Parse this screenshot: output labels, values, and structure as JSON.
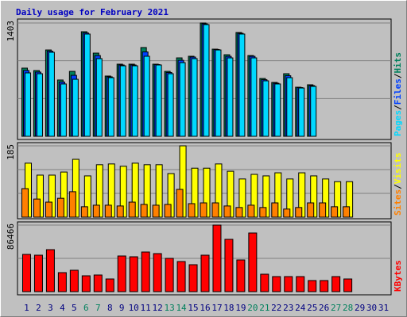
{
  "chart_data": [
    {
      "type": "bar",
      "title": "Daily usage for February 2021",
      "categories": [
        "1",
        "2",
        "3",
        "4",
        "5",
        "6",
        "7",
        "8",
        "9",
        "10",
        "11",
        "12",
        "13",
        "14",
        "15",
        "16",
        "17",
        "18",
        "19",
        "20",
        "21",
        "22",
        "23",
        "24",
        "25",
        "26",
        "27",
        "28",
        "29",
        "30",
        "31"
      ],
      "ylim": [
        0,
        1403
      ],
      "yticks": [
        1403
      ],
      "legend_separator": "/",
      "series": [
        {
          "name": "Hits",
          "color": "#00805c",
          "values": [
            844,
            814,
            1069,
            697,
            804,
            1295,
            1030,
            746,
            893,
            893,
            1099,
            893,
            804,
            971,
            991,
            1403,
            1079,
            1010,
            1285,
            1000,
            716,
            667,
            775,
            608,
            638,
            null,
            null,
            null,
            null,
            null,
            null
          ]
        },
        {
          "name": "Files",
          "color": "#0040ff",
          "values": [
            815,
            795,
            1055,
            672,
            755,
            1280,
            1000,
            736,
            883,
            883,
            1045,
            888,
            790,
            941,
            981,
            1393,
            1074,
            990,
            1275,
            990,
            701,
            657,
            750,
            603,
            628,
            null,
            null,
            null,
            null,
            null,
            null
          ]
        },
        {
          "name": "Pages",
          "color": "#00d8ff",
          "values": [
            785,
            775,
            1040,
            648,
            706,
            1266,
            962,
            726,
            873,
            873,
            991,
            883,
            775,
            912,
            962,
            1383,
            1069,
            971,
            1266,
            971,
            687,
            648,
            726,
            598,
            618,
            null,
            null,
            null,
            null,
            null,
            null
          ]
        }
      ]
    },
    {
      "type": "bar",
      "categories": [
        "1",
        "2",
        "3",
        "4",
        "5",
        "6",
        "7",
        "8",
        "9",
        "10",
        "11",
        "12",
        "13",
        "14",
        "15",
        "16",
        "17",
        "18",
        "19",
        "20",
        "21",
        "22",
        "23",
        "24",
        "25",
        "26",
        "27",
        "28",
        "29",
        "30",
        "31"
      ],
      "ylim": [
        0,
        185
      ],
      "yticks": [
        185
      ],
      "legend_separator": "/",
      "series": [
        {
          "name": "Visits",
          "color": "#ffff00",
          "values": [
            140,
            109,
            109,
            117,
            150,
            107,
            136,
            138,
            132,
            140,
            136,
            136,
            113,
            185,
            127,
            127,
            138,
            119,
            99,
            111,
            107,
            115,
            99,
            115,
            107,
            99,
            92,
            92,
            null,
            null,
            null
          ]
        },
        {
          "name": "Sites",
          "color": "#ff8000",
          "values": [
            74,
            47,
            39,
            49,
            66,
            27,
            31,
            31,
            29,
            39,
            33,
            31,
            33,
            72,
            35,
            37,
            37,
            29,
            25,
            31,
            25,
            37,
            21,
            25,
            37,
            37,
            27,
            27,
            null,
            null,
            null
          ]
        }
      ]
    },
    {
      "type": "bar",
      "categories": [
        "1",
        "2",
        "3",
        "4",
        "5",
        "6",
        "7",
        "8",
        "9",
        "10",
        "11",
        "12",
        "13",
        "14",
        "15",
        "16",
        "17",
        "18",
        "19",
        "20",
        "21",
        "22",
        "23",
        "24",
        "25",
        "26",
        "27",
        "28",
        "29",
        "30",
        "31"
      ],
      "category_colors": [
        "#000080",
        "#000080",
        "#000080",
        "#000080",
        "#000080",
        "#00805c",
        "#00805c",
        "#000080",
        "#000080",
        "#000080",
        "#000080",
        "#000080",
        "#00805c",
        "#00805c",
        "#000080",
        "#000080",
        "#000080",
        "#000080",
        "#000080",
        "#00805c",
        "#00805c",
        "#000080",
        "#000080",
        "#000080",
        "#000080",
        "#000080",
        "#00805c",
        "#00805c",
        "#000080",
        "#000080",
        "#000080"
      ],
      "ylim": [
        0,
        86466
      ],
      "yticks": [
        86466
      ],
      "series": [
        {
          "name": "KBytes",
          "color": "#ff0000",
          "values": [
            48380,
            47350,
            54556,
            24705,
            27793,
            20587,
            21616,
            16470,
            46321,
            45291,
            51468,
            49409,
            43233,
            39116,
            34998,
            47350,
            86466,
            67938,
            41174,
            76173,
            22646,
            19558,
            19558,
            19558,
            14411,
            14411,
            19558,
            16470,
            null,
            null,
            null
          ]
        }
      ]
    }
  ]
}
